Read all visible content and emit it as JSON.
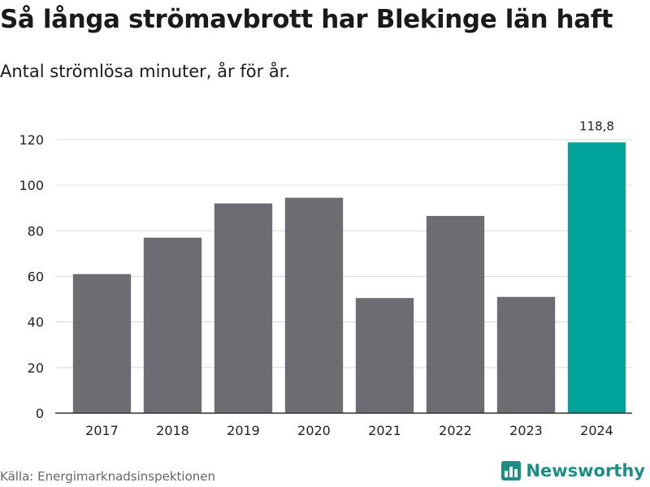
{
  "title": "Så långa strömavbrott har Blekinge län haft",
  "subtitle": "Antal strömlösa minuter, år för år.",
  "source": "Källa: Energimarknadsinspektionen",
  "brand": "Newsworthy",
  "colors": {
    "bar": "#6d6c72",
    "highlight": "#00a39a",
    "grid": "#d9d9d9",
    "axis": "#333333",
    "brand": "#1c8f84"
  },
  "chart_data": {
    "type": "bar",
    "title": "Så långa strömavbrott har Blekinge län haft",
    "subtitle": "Antal strömlösa minuter, år för år.",
    "xlabel": "",
    "ylabel": "",
    "categories": [
      "2017",
      "2018",
      "2019",
      "2020",
      "2021",
      "2022",
      "2023",
      "2024"
    ],
    "values": [
      61,
      77,
      92,
      94.5,
      50.5,
      86.5,
      51,
      118.8
    ],
    "highlight_index": 7,
    "data_labels": [
      {
        "category": "2024",
        "text": "118,8"
      }
    ],
    "ylim": [
      0,
      120
    ],
    "yticks": [
      "0",
      "20",
      "40",
      "60",
      "80",
      "100",
      "120"
    ],
    "grid": true
  }
}
